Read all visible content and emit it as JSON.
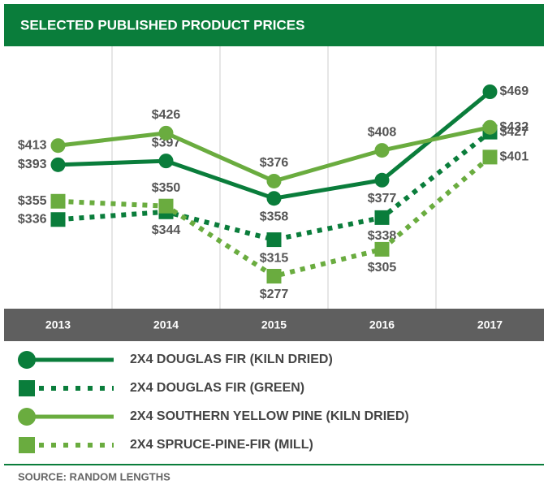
{
  "chart_data": {
    "type": "line",
    "title": "SELECTED PUBLISHED PRODUCT PRICES",
    "source": "SOURCE: RANDOM LENGTHS",
    "categories": [
      "2013",
      "2014",
      "2015",
      "2016",
      "2017"
    ],
    "series": [
      {
        "name": "2X4 DOUGLAS FIR (KILN DRIED)",
        "color": "#0a7d3b",
        "style": "solid",
        "marker": "circle",
        "values": [
          393,
          397,
          358,
          377,
          469
        ],
        "value_labels": [
          "$393",
          "$397",
          "$358",
          "$377",
          "$469"
        ]
      },
      {
        "name": "2X4 DOUGLAS FIR (GREEN)",
        "color": "#0a7d3b",
        "style": "dotted",
        "marker": "square",
        "values": [
          336,
          344,
          315,
          338,
          427
        ],
        "value_labels": [
          "$336",
          "$344",
          "$315",
          "$338",
          "$427"
        ]
      },
      {
        "name": "2X4 SOUTHERN YELLOW PINE (KILN DRIED)",
        "color": "#6aac3f",
        "style": "solid",
        "marker": "circle",
        "values": [
          413,
          426,
          376,
          408,
          432
        ],
        "value_labels": [
          "$413",
          "$426",
          "$376",
          "$408",
          "$432"
        ]
      },
      {
        "name": "2X4 SPRUCE-PINE-FIR (MILL)",
        "color": "#6aac3f",
        "style": "dotted",
        "marker": "square",
        "values": [
          355,
          350,
          277,
          305,
          401
        ],
        "value_labels": [
          "$355",
          "$350",
          "$277",
          "$305",
          "$401"
        ]
      }
    ]
  }
}
